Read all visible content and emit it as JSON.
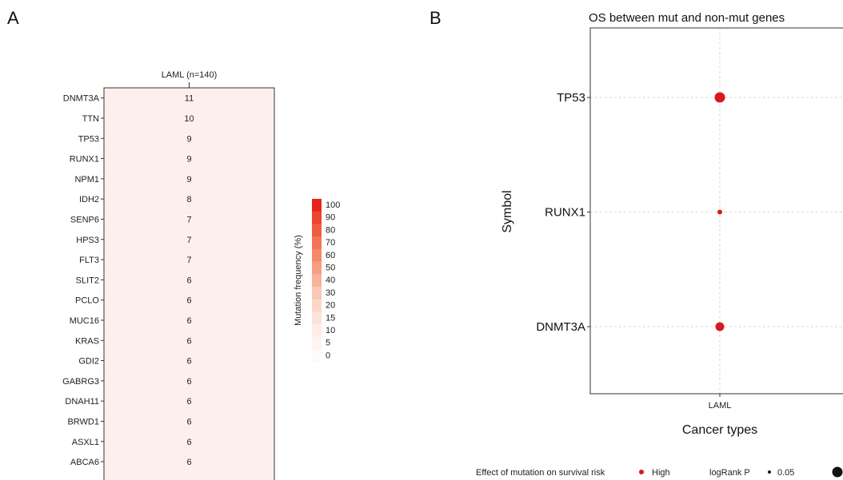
{
  "panel_labels": {
    "a": "A",
    "b": "B"
  },
  "chart_data": [
    {
      "type": "heatmap",
      "column_label": "LAML (n=140)",
      "rows": [
        "DNMT3A",
        "TTN",
        "TP53",
        "RUNX1",
        "NPM1",
        "IDH2",
        "SENP6",
        "HPS3",
        "FLT3",
        "SLIT2",
        "PCLO",
        "MUC16",
        "KRAS",
        "GDI2",
        "GABRG3",
        "DNAH11",
        "BRWD1",
        "ASXL1",
        "ABCA6"
      ],
      "values": [
        11,
        10,
        9,
        9,
        9,
        8,
        7,
        7,
        7,
        6,
        6,
        6,
        6,
        6,
        6,
        6,
        6,
        6,
        6
      ],
      "legend": {
        "title": "Mutation frequency (%)",
        "ticks": [
          "100",
          "90",
          "80",
          "70",
          "60",
          "50",
          "40",
          "30",
          "20",
          "15",
          "10",
          "5",
          "0"
        ],
        "colors": [
          "#e8221c",
          "#ec4530",
          "#f05c42",
          "#f27456",
          "#f4896b",
          "#f69e83",
          "#f8b39c",
          "#fac7b5",
          "#fcd7c8",
          "#fde3d8",
          "#feede6",
          "#fff4ef",
          "#fffafa"
        ]
      },
      "cell_color": "#fdf0ec"
    },
    {
      "type": "scatter",
      "title": "OS between mut and non-mut genes",
      "xlabel": "Cancer types",
      "ylabel": "Symbol",
      "categories_x": [
        "LAML"
      ],
      "categories_y": [
        "TP53",
        "RUNX1",
        "DNMT3A"
      ],
      "points": [
        {
          "x": "LAML",
          "y": "TP53",
          "effect": "High",
          "logrank_p_size_rank": 3
        },
        {
          "x": "LAML",
          "y": "RUNX1",
          "effect": "High",
          "logrank_p_size_rank": 1
        },
        {
          "x": "LAML",
          "y": "DNMT3A",
          "effect": "High",
          "logrank_p_size_rank": 2
        }
      ],
      "grid": true,
      "point_color": "#d7191c",
      "legend": {
        "effect_title": "Effect of mutation on survival risk",
        "effect_items": [
          "High"
        ],
        "size_title": "logRank P",
        "size_items": [
          "0.05"
        ]
      }
    }
  ]
}
